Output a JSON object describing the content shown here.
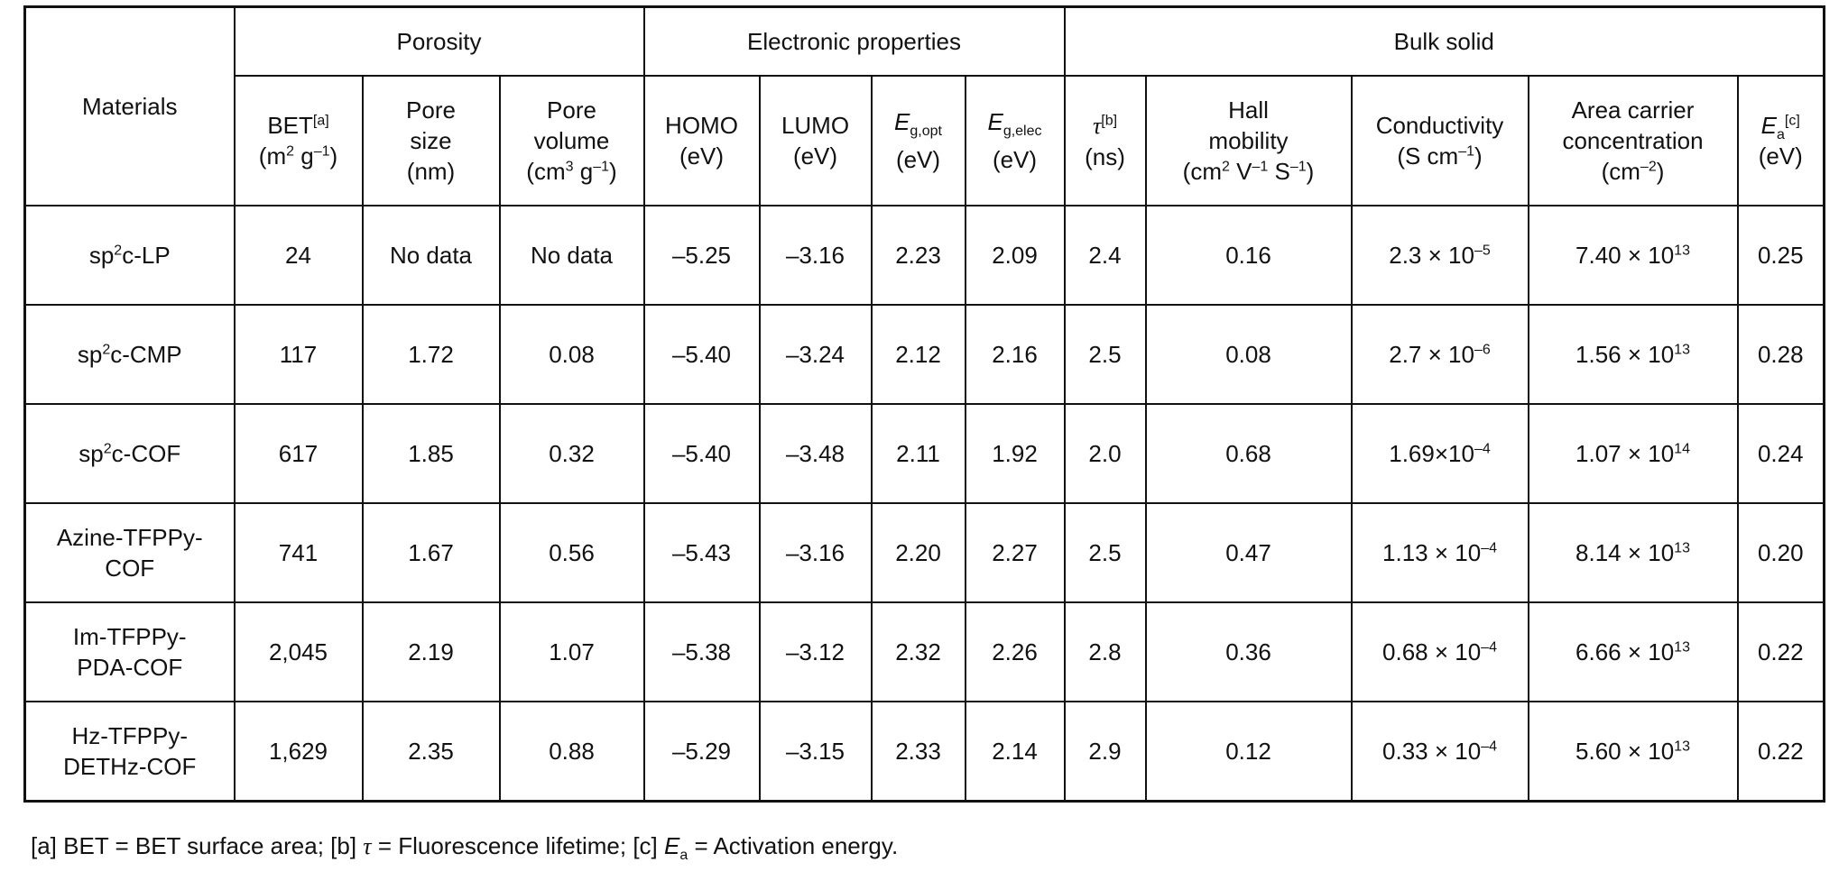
{
  "groups": {
    "materials": "Materials",
    "porosity": "Porosity",
    "electronic": "Electronic properties",
    "bulk": "Bulk solid"
  },
  "columns": {
    "bet": {
      "main": "BET",
      "sup": "[a]",
      "unit_a": "(m",
      "unit_a_sup": "2",
      "unit_b": " g",
      "unit_b_sup": "–1",
      "unit_c": ")"
    },
    "pore_size": {
      "l1": "Pore",
      "l2": "size",
      "l3": "(nm)"
    },
    "pore_volume": {
      "l1": "Pore",
      "l2": "volume",
      "unit_a": "(cm",
      "unit_a_sup": "3",
      "unit_b": " g",
      "unit_b_sup": "–1",
      "unit_c": ")"
    },
    "homo": {
      "l1": "HOMO",
      "l2": "(eV)"
    },
    "lumo": {
      "l1": "LUMO",
      "l2": "(eV)"
    },
    "eg_opt": {
      "sym": "E",
      "sub": "g,opt",
      "unit": "(eV)"
    },
    "eg_elec": {
      "sym": "E",
      "sub": "g,elec",
      "unit": "(eV)"
    },
    "tau": {
      "sym": "τ",
      "sup": "[b]",
      "unit": "(ns)"
    },
    "hall": {
      "l1": "Hall",
      "l2": "mobility",
      "unit_a": "(cm",
      "unit_a_sup": "2",
      "unit_b": " V",
      "unit_b_sup": "–1",
      "unit_c": " S",
      "unit_c_sup": "–1",
      "unit_d": ")"
    },
    "conductivity": {
      "l1": "Conductivity",
      "unit_a": "(S cm",
      "unit_a_sup": "–1",
      "unit_b": ")"
    },
    "carrier": {
      "l1": "Area carrier",
      "l2": "concentration",
      "unit_a": "(cm",
      "unit_a_sup": "–2",
      "unit_b": ")"
    },
    "ea": {
      "sym": "E",
      "sub": "a",
      "sup": "[c]",
      "unit": "(eV)"
    }
  },
  "rows": [
    {
      "m1": "sp",
      "m_sup": "2",
      "m2": "c-LP",
      "m3": "",
      "bet": "24",
      "pore_size": "No data",
      "pore_volume": "No data",
      "homo": "–5.25",
      "lumo": "–3.16",
      "eg_opt": "2.23",
      "eg_elec": "2.09",
      "tau": "2.4",
      "hall": "0.16",
      "cond_base": "2.3 × 10",
      "cond_exp": "–5",
      "carrier_base": "7.40 × 10",
      "carrier_exp": "13",
      "ea": "0.25"
    },
    {
      "m1": "sp",
      "m_sup": "2",
      "m2": "c-CMP",
      "m3": "",
      "bet": "117",
      "pore_size": "1.72",
      "pore_volume": "0.08",
      "homo": "–5.40",
      "lumo": "–3.24",
      "eg_opt": "2.12",
      "eg_elec": "2.16",
      "tau": "2.5",
      "hall": "0.08",
      "cond_base": "2.7 × 10",
      "cond_exp": "–6",
      "carrier_base": "1.56 × 10",
      "carrier_exp": "13",
      "ea": "0.28"
    },
    {
      "m1": "sp",
      "m_sup": "2",
      "m2": "c-COF",
      "m3": "",
      "bet": "617",
      "pore_size": "1.85",
      "pore_volume": "0.32",
      "homo": "–5.40",
      "lumo": "–3.48",
      "eg_opt": "2.11",
      "eg_elec": "1.92",
      "tau": "2.0",
      "hall": "0.68",
      "cond_base": "1.69×10",
      "cond_exp": "–4",
      "carrier_base": "1.07 × 10",
      "carrier_exp": "14",
      "ea": "0.24"
    },
    {
      "m1": "Azine-TFPPy-",
      "m_sup": "",
      "m2": "",
      "m3": "COF",
      "bet": "741",
      "pore_size": "1.67",
      "pore_volume": "0.56",
      "homo": "–5.43",
      "lumo": "–3.16",
      "eg_opt": "2.20",
      "eg_elec": "2.27",
      "tau": "2.5",
      "hall": "0.47",
      "cond_base": "1.13 × 10",
      "cond_exp": "–4",
      "carrier_base": "8.14 × 10",
      "carrier_exp": "13",
      "ea": "0.20"
    },
    {
      "m1": "Im-TFPPy-",
      "m_sup": "",
      "m2": "",
      "m3": "PDA-COF",
      "bet": "2,045",
      "pore_size": "2.19",
      "pore_volume": "1.07",
      "homo": "–5.38",
      "lumo": "–3.12",
      "eg_opt": "2.32",
      "eg_elec": "2.26",
      "tau": "2.8",
      "hall": "0.36",
      "cond_base": "0.68 × 10",
      "cond_exp": "–4",
      "carrier_base": "6.66 × 10",
      "carrier_exp": "13",
      "ea": "0.22"
    },
    {
      "m1": "Hz-TFPPy-",
      "m_sup": "",
      "m2": "",
      "m3": "DETHz-COF",
      "bet": "1,629",
      "pore_size": "2.35",
      "pore_volume": "0.88",
      "homo": "–5.29",
      "lumo": "–3.15",
      "eg_opt": "2.33",
      "eg_elec": "2.14",
      "tau": "2.9",
      "hall": "0.12",
      "cond_base": "0.33 × 10",
      "cond_exp": "–4",
      "carrier_base": "5.60 × 10",
      "carrier_exp": "13",
      "ea": "0.22"
    }
  ],
  "footnote": {
    "a": "[a] BET = BET surface area; [b] ",
    "tau": "τ",
    "b": " = Fluorescence lifetime; [c] ",
    "e": "E",
    "e_sub": "a",
    "c": " = Activation energy."
  }
}
